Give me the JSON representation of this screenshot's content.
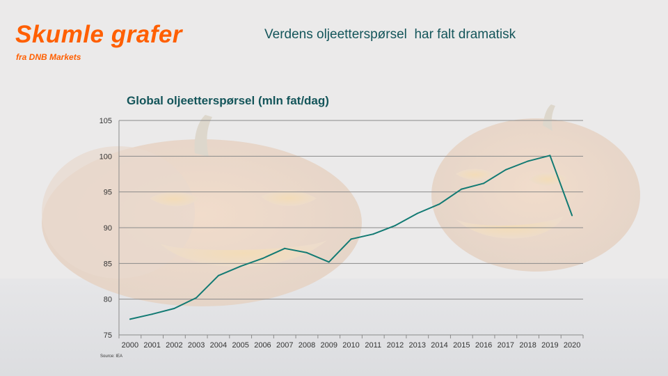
{
  "header": {
    "brand_title": "Skumle grafer",
    "brand_subtitle": "fra DNB Markets",
    "headline": "Verdens oljeetterspørsel  har falt dramatisk"
  },
  "colors": {
    "brand": "#ff5f00",
    "headline": "#14555a",
    "line": "#127a73",
    "chart_title": "#14555a",
    "grid": "#8a8a8a",
    "axis_text": "#333333"
  },
  "chart_data": {
    "type": "line",
    "title": "Global oljeetterspørsel (mln fat/dag)",
    "xlabel": "",
    "ylabel": "",
    "source": "Source: IEA",
    "categories": [
      "2000",
      "2001",
      "2002",
      "2003",
      "2004",
      "2005",
      "2006",
      "2007",
      "2008",
      "2009",
      "2010",
      "2011",
      "2012",
      "2013",
      "2014",
      "2015",
      "2016",
      "2017",
      "2018",
      "2019",
      "2020"
    ],
    "series": [
      {
        "values": [
          77.2,
          77.9,
          78.7,
          80.2,
          83.3,
          84.6,
          85.7,
          87.1,
          86.5,
          85.2,
          88.4,
          89.1,
          90.3,
          92.0,
          93.3,
          95.4,
          96.2,
          98.1,
          99.3,
          100.1,
          91.7
        ]
      }
    ],
    "ylim": [
      75,
      105
    ],
    "yticks": [
      75,
      80,
      85,
      90,
      95,
      100,
      105
    ],
    "grid": true,
    "legend": "none"
  }
}
